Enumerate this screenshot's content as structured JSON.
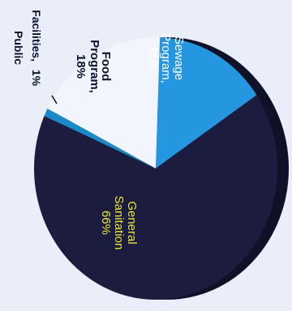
{
  "chart_data": {
    "type": "pie",
    "orientation": "rotated-90-clockwise",
    "three_d": true,
    "slices": [
      {
        "label": "General Sanitation",
        "value_text": "66%",
        "value": 66,
        "color": "#1c1c3e",
        "label_color": "#e8e43a"
      },
      {
        "label": "Sewage Program,",
        "value_text": "15%",
        "value": 15,
        "color": "#2596e0",
        "label_color": "#ffffff"
      },
      {
        "label": "Food Program,",
        "value_text": "18%",
        "value": 18,
        "color": "#f2f5fb",
        "label_color": "#0b1330"
      },
      {
        "label": "Public Facilities,",
        "value_text": "1%",
        "value": 1,
        "color": "#1a89c8",
        "label_color": "#0b1330"
      }
    ],
    "colors": {
      "background": "#e9eef8",
      "rim": "#0f1128",
      "label_outline_public": "#0b1330"
    }
  }
}
